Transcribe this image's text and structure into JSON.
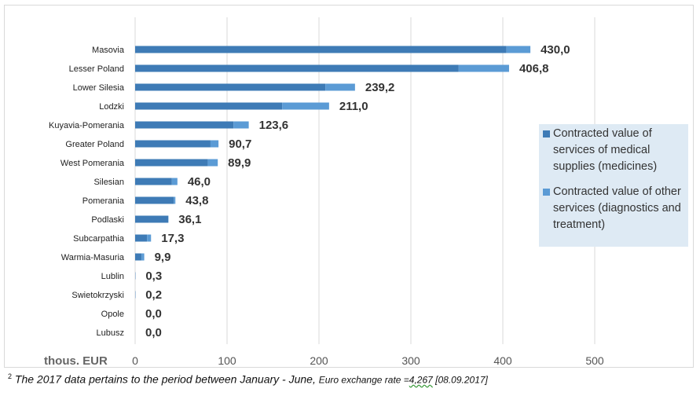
{
  "chart_data": {
    "type": "bar",
    "orientation": "horizontal",
    "stacked": true,
    "categories": [
      "Masovia",
      "Lesser  Poland",
      "Lower  Silesia",
      "Lodzki",
      "Kuyavia-Pomerania",
      "Greater  Poland",
      "West Pomerania",
      "Silesian",
      "Pomerania",
      "Podlaski",
      "Subcarpathia",
      "Warmia-Masuria",
      "Lublin",
      "Swietokrzyski",
      "Opole",
      "Lubusz"
    ],
    "series": [
      {
        "name": "Contracted value of services of medical supplies (medicines)",
        "color": "#3e7bb6",
        "values": [
          404,
          352,
          207,
          160,
          107,
          82,
          79,
          40,
          42,
          36,
          13,
          7,
          0.3,
          0.2,
          0,
          0
        ]
      },
      {
        "name": "Contracted value of other services (diagnostics and treatment)",
        "color": "#5b9bd5",
        "values": [
          26,
          54.8,
          32.2,
          51,
          16.6,
          8.7,
          10.9,
          6,
          1.8,
          0.1,
          4.3,
          2.9,
          0,
          0,
          0,
          0
        ]
      }
    ],
    "totals": [
      "430,0",
      "406,8",
      "239,2",
      "211,0",
      "123,6",
      "90,7",
      "89,9",
      "46,0",
      "43,8",
      "36,1",
      "17,3",
      "9,9",
      "0,3",
      "0,2",
      "0,0",
      "0,0"
    ],
    "xlim": [
      0,
      600
    ],
    "xticks": [
      "0",
      "100",
      "200",
      "300",
      "400",
      "500"
    ],
    "xtick_values": [
      0,
      100,
      200,
      300,
      400,
      500
    ],
    "unit_label": "thous. EUR",
    "grid": true,
    "legend_position": "right"
  },
  "legend": [
    {
      "label": "Contracted value of services of medical supplies (medicines)",
      "color": "#3e7bb6"
    },
    {
      "label": "Contracted value of other services (diagnostics and treatment)",
      "color": "#5b9bd5"
    }
  ],
  "footnote": {
    "marker": "2",
    "main": "The 2017 data pertains to the period between January - June,",
    "rate_prefix": "Euro exchange rate =",
    "rate_value": "4,267",
    "date": " [08.09.2017]"
  }
}
